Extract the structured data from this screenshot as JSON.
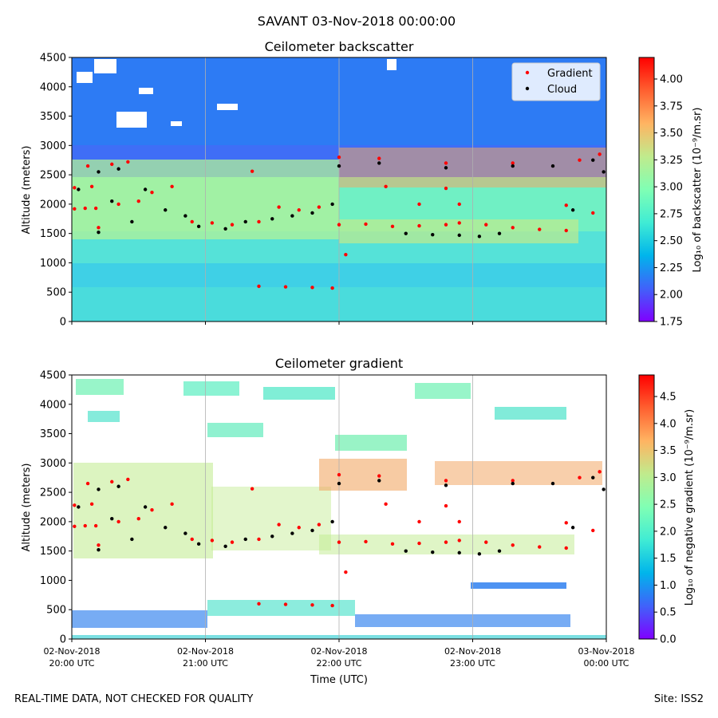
{
  "suptitle": "SAVANT 03-Nov-2018 00:00:00",
  "footer": {
    "left": "REAL-TIME DATA, NOT CHECKED FOR QUALITY",
    "right": "Site: ISS2"
  },
  "colors": {
    "gradient_marker": "#ff0000",
    "cloud_marker": "#000000",
    "rainbow": [
      "#8000ff",
      "#4062fa",
      "#00b5eb",
      "#40ecd4",
      "#80ffb4",
      "#c0eb8d",
      "#ffb462",
      "#ff6030",
      "#ff0000"
    ]
  },
  "x_ticks": [
    {
      "line1": "02-Nov-2018",
      "line2": "20:00 UTC"
    },
    {
      "line1": "02-Nov-2018",
      "line2": "21:00 UTC"
    },
    {
      "line1": "02-Nov-2018",
      "line2": "22:00 UTC"
    },
    {
      "line1": "02-Nov-2018",
      "line2": "23:00 UTC"
    },
    {
      "line1": "03-Nov-2018",
      "line2": "00:00 UTC"
    }
  ],
  "xlabel": "Time (UTC)",
  "chart_data": [
    {
      "type": "heatmap",
      "title": "Ceilometer backscatter",
      "xlabel": "",
      "ylabel": "Altitude (meters)",
      "ylim": [
        0,
        4500
      ],
      "yticks": [
        "0",
        "500",
        "1000",
        "1500",
        "2000",
        "2500",
        "3000",
        "3500",
        "4000",
        "4500"
      ],
      "xlim_hours": [
        0,
        4
      ],
      "colorbar": {
        "label": "Log₁₀ of backscatter (10⁻⁹/m.sr)",
        "range": [
          1.75,
          4.2
        ],
        "ticks": [
          "1.75",
          "2.00",
          "2.25",
          "2.50",
          "2.75",
          "3.00",
          "3.25",
          "3.50",
          "3.75",
          "4.00"
        ]
      },
      "legend": {
        "position": "top-right",
        "entries": [
          "Gradient",
          "Cloud"
        ]
      },
      "layers": [
        {
          "alt": [
            0,
            500
          ],
          "value": 2.7
        },
        {
          "alt": [
            500,
            1500
          ],
          "value": 2.6
        },
        {
          "alt": [
            1500,
            2500
          ],
          "value": 2.85
        },
        {
          "alt": [
            2500,
            3000
          ],
          "value": 2.3
        },
        {
          "alt": [
            3000,
            4500
          ],
          "value": 2.15
        }
      ],
      "series": [
        {
          "name": "Gradient",
          "points": [
            [
              0.02,
              1920
            ],
            [
              0.1,
              1930
            ],
            [
              0.18,
              1930
            ],
            [
              0.02,
              2280
            ],
            [
              0.15,
              2300
            ],
            [
              0.12,
              2650
            ],
            [
              0.3,
              2680
            ],
            [
              0.42,
              2720
            ],
            [
              0.2,
              1600
            ],
            [
              0.35,
              2000
            ],
            [
              0.5,
              2050
            ],
            [
              0.6,
              2200
            ],
            [
              0.75,
              2300
            ],
            [
              0.9,
              1700
            ],
            [
              1.05,
              1680
            ],
            [
              1.2,
              1650
            ],
            [
              1.4,
              1700
            ],
            [
              1.55,
              1950
            ],
            [
              1.7,
              1900
            ],
            [
              1.85,
              1950
            ],
            [
              1.4,
              600
            ],
            [
              1.6,
              590
            ],
            [
              1.8,
              580
            ],
            [
              1.95,
              570
            ],
            [
              2.05,
              1140
            ],
            [
              2.0,
              1650
            ],
            [
              2.2,
              1660
            ],
            [
              2.4,
              1620
            ],
            [
              2.6,
              1630
            ],
            [
              2.8,
              1650
            ],
            [
              2.9,
              1680
            ],
            [
              3.1,
              1650
            ],
            [
              3.3,
              1600
            ],
            [
              3.5,
              1570
            ],
            [
              3.7,
              1550
            ],
            [
              1.35,
              2560
            ],
            [
              2.35,
              2300
            ],
            [
              2.6,
              2000
            ],
            [
              2.9,
              2000
            ],
            [
              2.8,
              2270
            ],
            [
              2.0,
              2800
            ],
            [
              2.3,
              2780
            ],
            [
              2.8,
              2700
            ],
            [
              3.3,
              2700
            ],
            [
              3.8,
              2750
            ],
            [
              3.95,
              2850
            ],
            [
              3.7,
              1980
            ],
            [
              3.9,
              1850
            ]
          ]
        },
        {
          "name": "Cloud",
          "points": [
            [
              0.2,
              1520
            ],
            [
              0.3,
              2050
            ],
            [
              0.45,
              1700
            ],
            [
              0.55,
              2250
            ],
            [
              0.7,
              1900
            ],
            [
              0.85,
              1800
            ],
            [
              0.95,
              1620
            ],
            [
              1.15,
              1580
            ],
            [
              1.3,
              1700
            ],
            [
              1.5,
              1750
            ],
            [
              1.65,
              1800
            ],
            [
              1.8,
              1850
            ],
            [
              1.95,
              2000
            ],
            [
              0.05,
              2250
            ],
            [
              0.2,
              2550
            ],
            [
              0.35,
              2600
            ],
            [
              2.0,
              2650
            ],
            [
              2.3,
              2700
            ],
            [
              2.5,
              1500
            ],
            [
              2.7,
              1480
            ],
            [
              2.9,
              1470
            ],
            [
              3.05,
              1450
            ],
            [
              3.2,
              1500
            ],
            [
              2.8,
              2620
            ],
            [
              3.3,
              2650
            ],
            [
              3.6,
              2650
            ],
            [
              3.9,
              2750
            ],
            [
              3.98,
              2550
            ],
            [
              3.75,
              1900
            ]
          ]
        }
      ]
    },
    {
      "type": "heatmap",
      "title": "Ceilometer gradient",
      "xlabel": "Time (UTC)",
      "ylabel": "Altitude (meters)",
      "ylim": [
        0,
        4500
      ],
      "yticks": [
        "0",
        "500",
        "1000",
        "1500",
        "2000",
        "2500",
        "3000",
        "3500",
        "4000",
        "4500"
      ],
      "xlim_hours": [
        0,
        4
      ],
      "colorbar": {
        "label": "Log₁₀ of negative gradient (10⁻⁹/m.sr)",
        "range": [
          0,
          4.9
        ],
        "ticks": [
          "0.0",
          "0.5",
          "1.0",
          "1.5",
          "2.0",
          "2.5",
          "3.0",
          "3.5",
          "4.0",
          "4.5"
        ]
      },
      "series": [
        {
          "name": "Gradient",
          "points": [
            [
              0.02,
              1920
            ],
            [
              0.1,
              1930
            ],
            [
              0.18,
              1930
            ],
            [
              0.02,
              2280
            ],
            [
              0.15,
              2300
            ],
            [
              0.12,
              2650
            ],
            [
              0.3,
              2680
            ],
            [
              0.42,
              2720
            ],
            [
              0.2,
              1600
            ],
            [
              0.35,
              2000
            ],
            [
              0.5,
              2050
            ],
            [
              0.6,
              2200
            ],
            [
              0.75,
              2300
            ],
            [
              0.9,
              1700
            ],
            [
              1.05,
              1680
            ],
            [
              1.2,
              1650
            ],
            [
              1.4,
              1700
            ],
            [
              1.55,
              1950
            ],
            [
              1.7,
              1900
            ],
            [
              1.85,
              1950
            ],
            [
              1.4,
              600
            ],
            [
              1.6,
              590
            ],
            [
              1.8,
              580
            ],
            [
              1.95,
              570
            ],
            [
              2.05,
              1140
            ],
            [
              2.0,
              1650
            ],
            [
              2.2,
              1660
            ],
            [
              2.4,
              1620
            ],
            [
              2.6,
              1630
            ],
            [
              2.8,
              1650
            ],
            [
              2.9,
              1680
            ],
            [
              3.1,
              1650
            ],
            [
              3.3,
              1600
            ],
            [
              3.5,
              1570
            ],
            [
              3.7,
              1550
            ],
            [
              1.35,
              2560
            ],
            [
              2.35,
              2300
            ],
            [
              2.6,
              2000
            ],
            [
              2.9,
              2000
            ],
            [
              2.8,
              2270
            ],
            [
              2.0,
              2800
            ],
            [
              2.3,
              2780
            ],
            [
              2.8,
              2700
            ],
            [
              3.3,
              2700
            ],
            [
              3.8,
              2750
            ],
            [
              3.95,
              2850
            ],
            [
              3.7,
              1980
            ],
            [
              3.9,
              1850
            ]
          ]
        },
        {
          "name": "Cloud",
          "points": [
            [
              0.2,
              1520
            ],
            [
              0.3,
              2050
            ],
            [
              0.45,
              1700
            ],
            [
              0.55,
              2250
            ],
            [
              0.7,
              1900
            ],
            [
              0.85,
              1800
            ],
            [
              0.95,
              1620
            ],
            [
              1.15,
              1580
            ],
            [
              1.3,
              1700
            ],
            [
              1.5,
              1750
            ],
            [
              1.65,
              1800
            ],
            [
              1.8,
              1850
            ],
            [
              1.95,
              2000
            ],
            [
              0.05,
              2250
            ],
            [
              0.2,
              2550
            ],
            [
              0.35,
              2600
            ],
            [
              2.0,
              2650
            ],
            [
              2.3,
              2700
            ],
            [
              2.5,
              1500
            ],
            [
              2.7,
              1480
            ],
            [
              2.9,
              1470
            ],
            [
              3.05,
              1450
            ],
            [
              3.2,
              1500
            ],
            [
              2.8,
              2620
            ],
            [
              3.3,
              2650
            ],
            [
              3.6,
              2650
            ],
            [
              3.9,
              2750
            ],
            [
              3.98,
              2550
            ],
            [
              3.75,
              1900
            ]
          ]
        }
      ]
    }
  ]
}
